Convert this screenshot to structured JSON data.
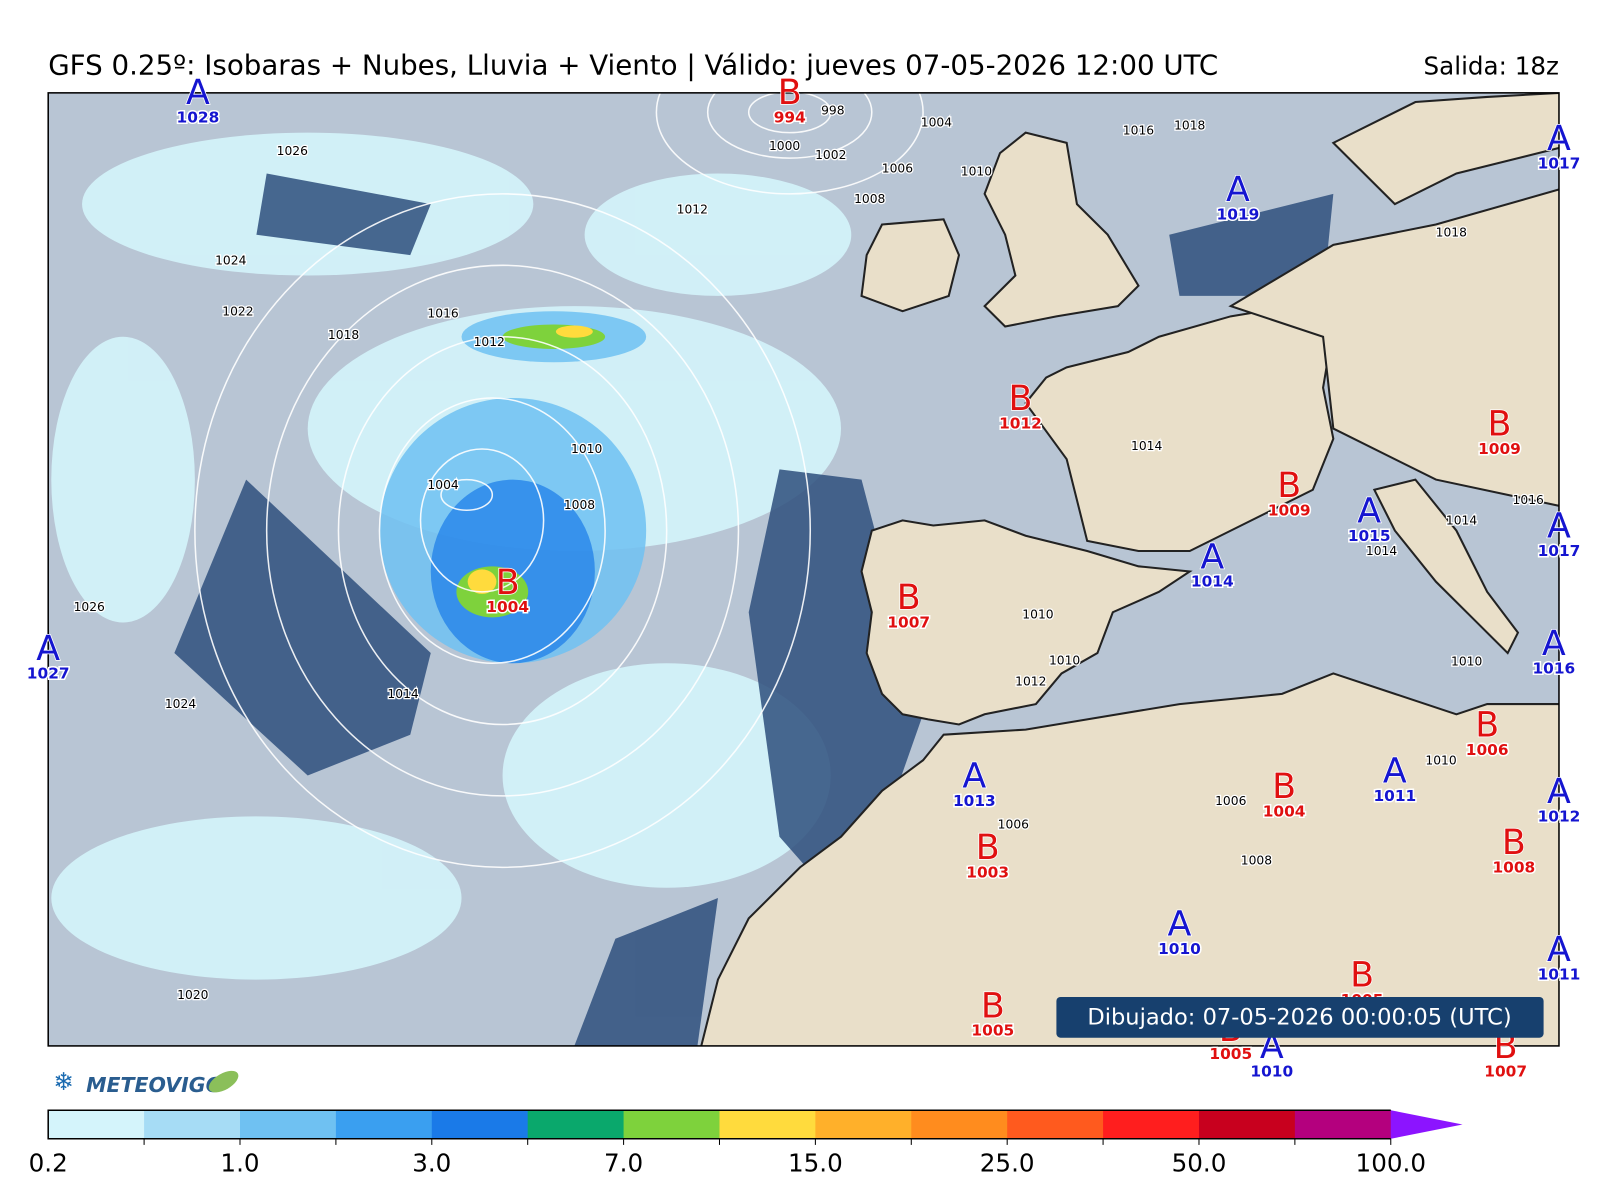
{
  "header": {
    "title": "GFS 0.25º: Isobaras + Nubes, Lluvia + Viento | Válido: jueves 07-05-2026 12:00 UTC",
    "run": "Salida: 18z"
  },
  "pressure_centers": [
    {
      "letter": "A",
      "value": 1028
    },
    {
      "letter": "B",
      "value": 994
    },
    {
      "letter": "A",
      "value": 1017
    },
    {
      "letter": "A",
      "value": 1019
    },
    {
      "letter": "B",
      "value": 1012
    },
    {
      "letter": "B",
      "value": 1009
    },
    {
      "letter": "B",
      "value": 1009
    },
    {
      "letter": "A",
      "value": 1015
    },
    {
      "letter": "A",
      "value": 1017
    },
    {
      "letter": "A",
      "value": 1014
    },
    {
      "letter": "B",
      "value": 1007
    },
    {
      "letter": "B",
      "value": 1004
    },
    {
      "letter": "A",
      "value": 1027
    },
    {
      "letter": "A",
      "value": 1016
    },
    {
      "letter": "B",
      "value": 1006
    },
    {
      "letter": "A",
      "value": 1013
    },
    {
      "letter": "A",
      "value": 1011
    },
    {
      "letter": "B",
      "value": 1004
    },
    {
      "letter": "A",
      "value": 1012
    },
    {
      "letter": "B",
      "value": 1008
    },
    {
      "letter": "B",
      "value": 1003
    },
    {
      "letter": "A",
      "value": 1010
    },
    {
      "letter": "A",
      "value": 1011
    },
    {
      "letter": "B",
      "value": 1005
    },
    {
      "letter": "B",
      "value": 1005
    },
    {
      "letter": "B",
      "value": 1005
    },
    {
      "letter": "A",
      "value": 1010
    },
    {
      "letter": "B",
      "value": 1007
    }
  ],
  "isobar_labels": [
    1026,
    1024,
    1022,
    1018,
    1016,
    1012,
    1010,
    1008,
    1004,
    1000,
    1002,
    1006,
    1008,
    998,
    1004,
    1010,
    1012,
    1016,
    1018,
    1018,
    1014,
    1010,
    1010,
    1012,
    1026,
    1024,
    1014,
    1020,
    1006,
    1008,
    1006,
    1010,
    1014,
    1016,
    1014,
    1010
  ],
  "footer": {
    "drawn": "Dibujado: 07-05-2026 00:00:05 (UTC)",
    "logo": "METEOVIGO"
  },
  "colorbar": {
    "colors": [
      "#d4f4fb",
      "#a6dcf5",
      "#6fc1f2",
      "#3a9ff0",
      "#1a7ae8",
      "#0aa86c",
      "#7ed23c",
      "#ffdb3d",
      "#ffb02a",
      "#ff8c1e",
      "#ff5a1e",
      "#ff1e1e",
      "#c8001e",
      "#b4007e",
      "#8c14ff"
    ],
    "ticks": [
      "0.2",
      "1.0",
      "3.0",
      "7.0",
      "15.0",
      "25.0",
      "50.0",
      "100.0"
    ]
  }
}
